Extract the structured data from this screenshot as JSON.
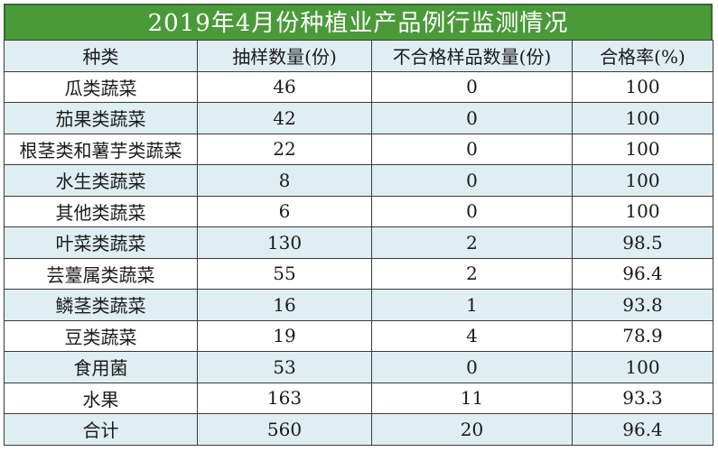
{
  "title": "2019年4月份种植业产品例行监测情况",
  "headers": [
    "种类",
    "抽样数量(份)",
    "不合格样品数量(份)",
    "合格率(%)"
  ],
  "rows": [
    [
      "瓜类蔬菜",
      "46",
      "0",
      "100"
    ],
    [
      "茄果类蔬菜",
      "42",
      "0",
      "100"
    ],
    [
      "根茎类和薯芋类蔬菜",
      "22",
      "0",
      "100"
    ],
    [
      "水生类蔬菜",
      "8",
      "0",
      "100"
    ],
    [
      "其他类蔬菜",
      "6",
      "0",
      "100"
    ],
    [
      "叶菜类蔬菜",
      "130",
      "2",
      "98.5"
    ],
    [
      "芸薹属类蔬菜",
      "55",
      "2",
      "96.4"
    ],
    [
      "鳞茎类蔬菜",
      "16",
      "1",
      "93.8"
    ],
    [
      "豆类蔬菜",
      "19",
      "4",
      "78.9"
    ],
    [
      "食用菌",
      "53",
      "0",
      "100"
    ],
    [
      "水果",
      "163",
      "11",
      "93.3"
    ],
    [
      "合计",
      "560",
      "20",
      "96.4"
    ]
  ],
  "colors": {
    "title_bg": "#4b9a3a",
    "shaded_row": "#dfeef2",
    "plain_row": "#ffffff"
  }
}
